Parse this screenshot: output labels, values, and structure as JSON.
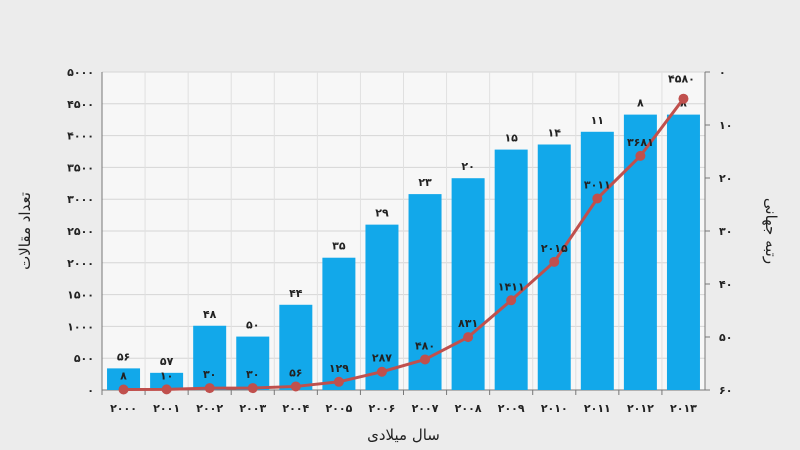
{
  "chart_data": {
    "type": "bar",
    "xlabel": "سال میلادی",
    "ylabel": "تعداد مقالات",
    "y2label": "رتبه جهانی",
    "categories": [
      "۲۰۰۰",
      "۲۰۰۱",
      "۲۰۰۲",
      "۲۰۰۳",
      "۲۰۰۴",
      "۲۰۰۵",
      "۲۰۰۶",
      "۲۰۰۷",
      "۲۰۰۸",
      "۲۰۰۹",
      "۲۰۱۰",
      "۲۰۱۱",
      "۲۰۱۲",
      "۲۰۱۳"
    ],
    "ylim": [
      0,
      5000
    ],
    "y_ticks": [
      "۰",
      "۵۰۰",
      "۱۰۰۰",
      "۱۵۰۰",
      "۲۰۰۰",
      "۲۵۰۰",
      "۳۰۰۰",
      "۳۵۰۰",
      "۴۰۰۰",
      "۴۵۰۰",
      "۵۰۰۰"
    ],
    "y2lim": [
      0,
      60
    ],
    "y2_ticks": [
      "۰",
      "۱۰",
      "۲۰",
      "۳۰",
      "۴۰",
      "۵۰",
      "۶۰"
    ],
    "y2_inverted": true,
    "grid": true,
    "series": [
      {
        "kind": "bar",
        "axis": "left",
        "color": "#12a8ea",
        "values": [
          340,
          270,
          1010,
          840,
          1340,
          2080,
          2600,
          3080,
          3330,
          3780,
          3860,
          4060,
          4330,
          4330
        ],
        "rank_labels": [
          "۵۶",
          "۵۷",
          "۴۸",
          "۵۰",
          "۴۴",
          "۳۵",
          "۲۹",
          "۲۳",
          "۲۰",
          "۱۵",
          "۱۴",
          "۱۱",
          "۸",
          "۸"
        ]
      },
      {
        "kind": "line",
        "axis": "left",
        "color": "#c0504d",
        "values": [
          8,
          10,
          30,
          30,
          56,
          129,
          287,
          480,
          831,
          1411,
          2015,
          3011,
          3681,
          4580
        ],
        "labels": [
          "۸",
          "۱۰",
          "۳۰",
          "۳۰",
          "۵۶",
          "۱۲۹",
          "۲۸۷",
          "۴۸۰",
          "۸۳۱",
          "۱۴۱۱",
          "۲۰۱۵",
          "۳۰۱۱",
          "۳۶۸۱",
          "۴۵۸۰"
        ]
      }
    ]
  }
}
